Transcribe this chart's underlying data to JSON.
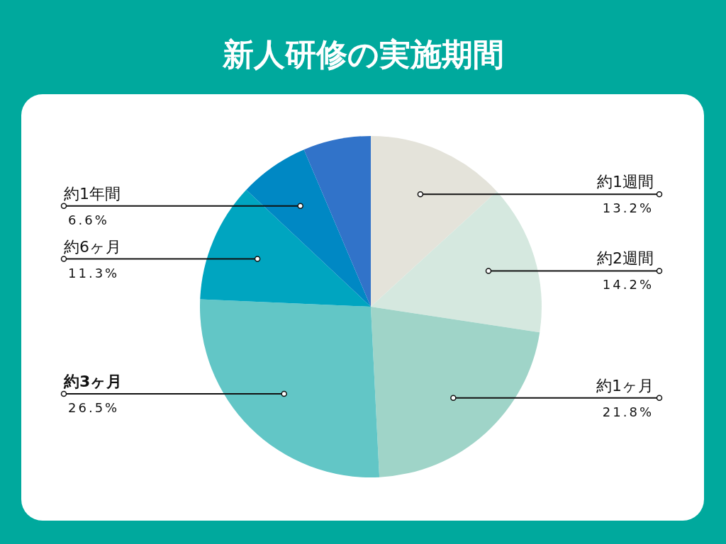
{
  "chart_data": {
    "type": "pie",
    "title": "新人研修の実施期間",
    "categories": [
      "約1週間",
      "約2週間",
      "約1ヶ月",
      "約3ヶ月",
      "約6ヶ月",
      "約1年間",
      null
    ],
    "values": [
      13.2,
      14.2,
      21.8,
      26.5,
      11.3,
      6.6,
      6.4
    ],
    "colors": [
      "#e4e3da",
      "#d5e8df",
      "#9fd4c8",
      "#62c6c6",
      "#00a5c0",
      "#0088c4",
      "#3173c9"
    ],
    "value_labels": [
      "13.2%",
      "14.2%",
      "21.8%",
      "26.5%",
      "11.3%",
      "6.6%",
      null
    ]
  }
}
